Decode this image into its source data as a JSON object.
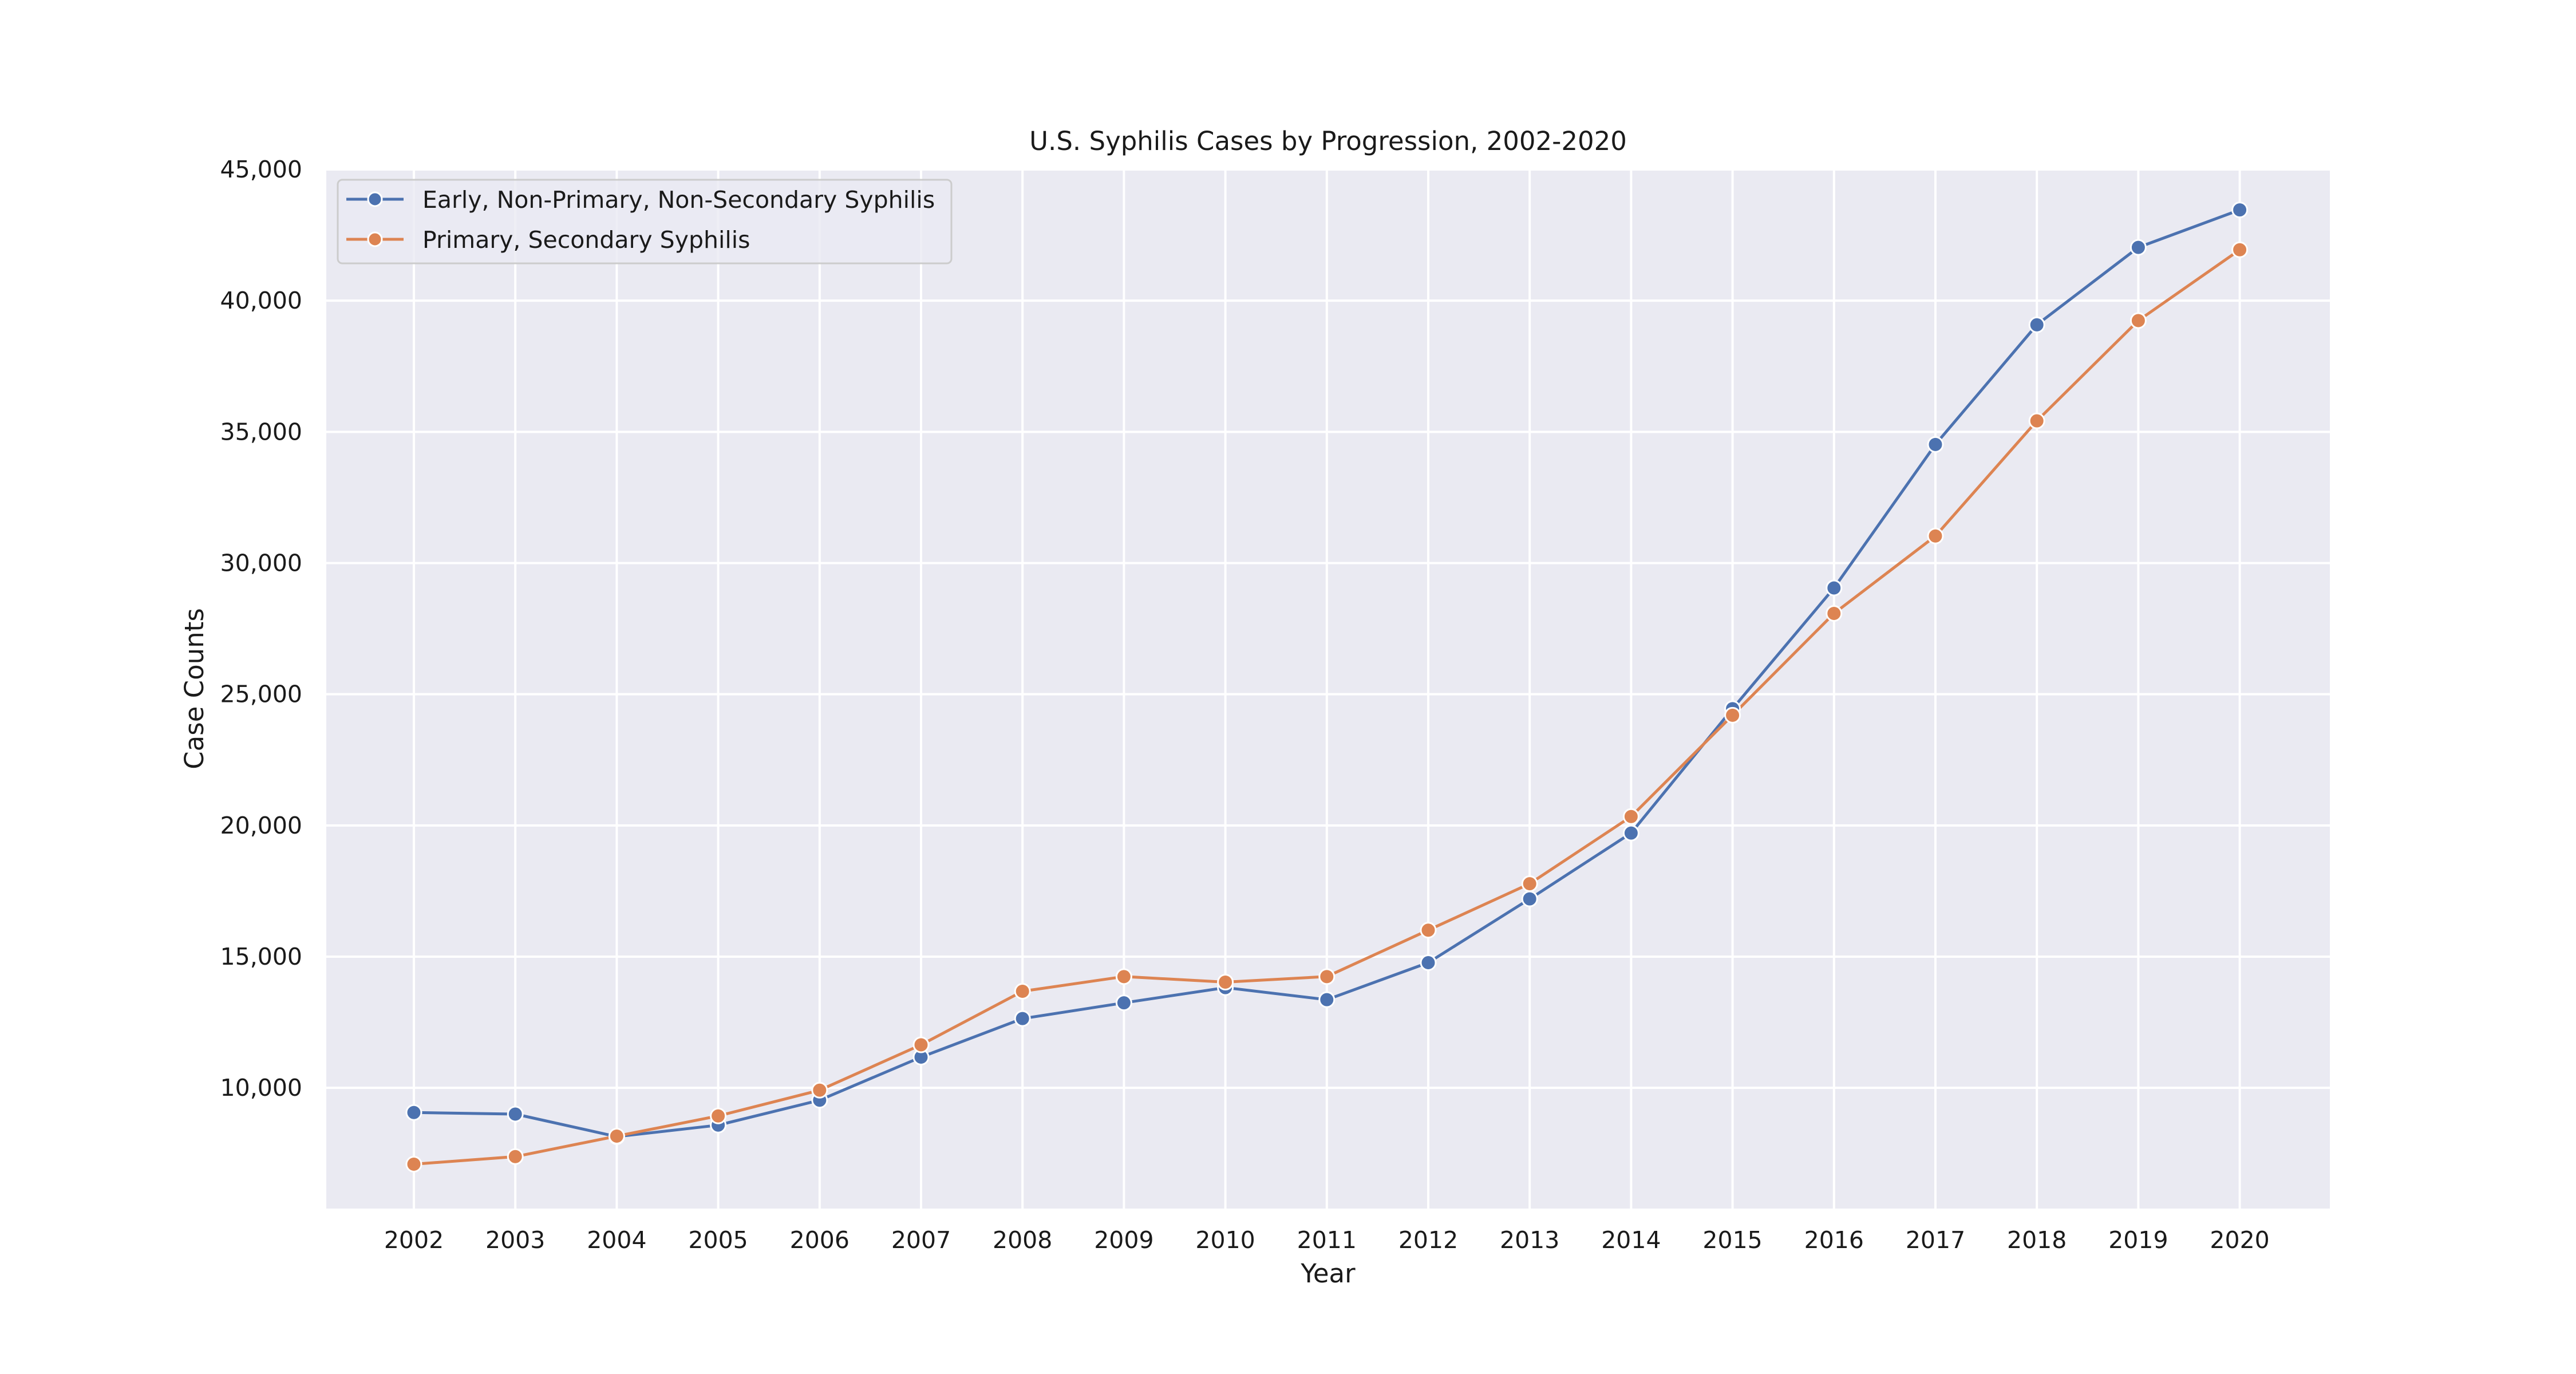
{
  "chart_data": {
    "type": "line",
    "title": "U.S. Syphilis Cases by Progression, 2002-2020",
    "xlabel": "Year",
    "ylabel": "Case Counts",
    "categories": [
      "2002",
      "2003",
      "2004",
      "2005",
      "2006",
      "2007",
      "2008",
      "2009",
      "2010",
      "2011",
      "2012",
      "2013",
      "2014",
      "2015",
      "2016",
      "2017",
      "2018",
      "2019",
      "2020"
    ],
    "ylim": [
      5400,
      45000
    ],
    "yticks": [
      10000,
      15000,
      20000,
      25000,
      30000,
      35000,
      40000,
      45000
    ],
    "ytick_labels": [
      "10,000",
      "15,000",
      "20,000",
      "25,000",
      "30,000",
      "35,000",
      "40,000",
      "45,000"
    ],
    "grid": true,
    "legend_position": "top-left",
    "series": [
      {
        "name": "Early, Non-Primary, Non-Secondary Syphilis",
        "color": "#4c72b0",
        "marker": "circle",
        "values": [
          9060,
          9000,
          8140,
          8580,
          9530,
          11170,
          12640,
          13240,
          13820,
          13360,
          14770,
          17200,
          19710,
          24450,
          29050,
          34520,
          39080,
          42030,
          43460
        ]
      },
      {
        "name": "Primary, Secondary Syphilis",
        "color": "#dd8452",
        "marker": "circle",
        "values": [
          7090,
          7380,
          8160,
          8930,
          9910,
          11640,
          13680,
          14240,
          14030,
          14240,
          16010,
          17780,
          20340,
          24200,
          28080,
          31030,
          35420,
          39240,
          41940
        ]
      }
    ]
  }
}
